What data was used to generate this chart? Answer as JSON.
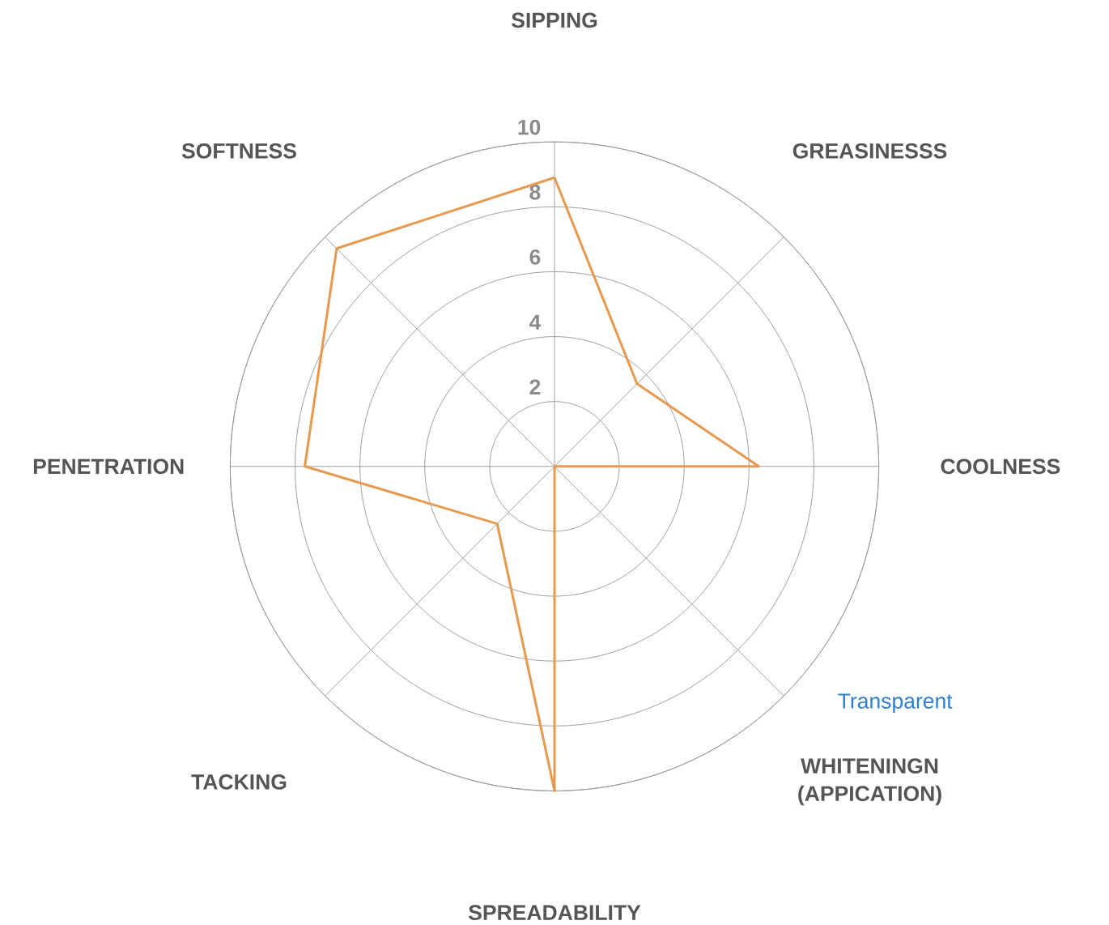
{
  "chart_data": {
    "type": "radar",
    "categories": [
      "SIPPING",
      "GREASINESSS",
      "COOLNESS",
      "WHITENINGN (APPICATION)",
      "SPREADABILITY",
      "TACKING",
      "PENETRATION",
      "SOFTNESS"
    ],
    "series": [
      {
        "color": "#e59a4f",
        "values": [
          8.9,
          3.6,
          6.3,
          0,
          10,
          2.5,
          7.7,
          9.5
        ]
      }
    ],
    "ylim": [
      0,
      10
    ],
    "yticks": [
      2,
      4,
      6,
      8,
      10
    ],
    "grid": true,
    "annotations": [
      "Transparent"
    ]
  }
}
